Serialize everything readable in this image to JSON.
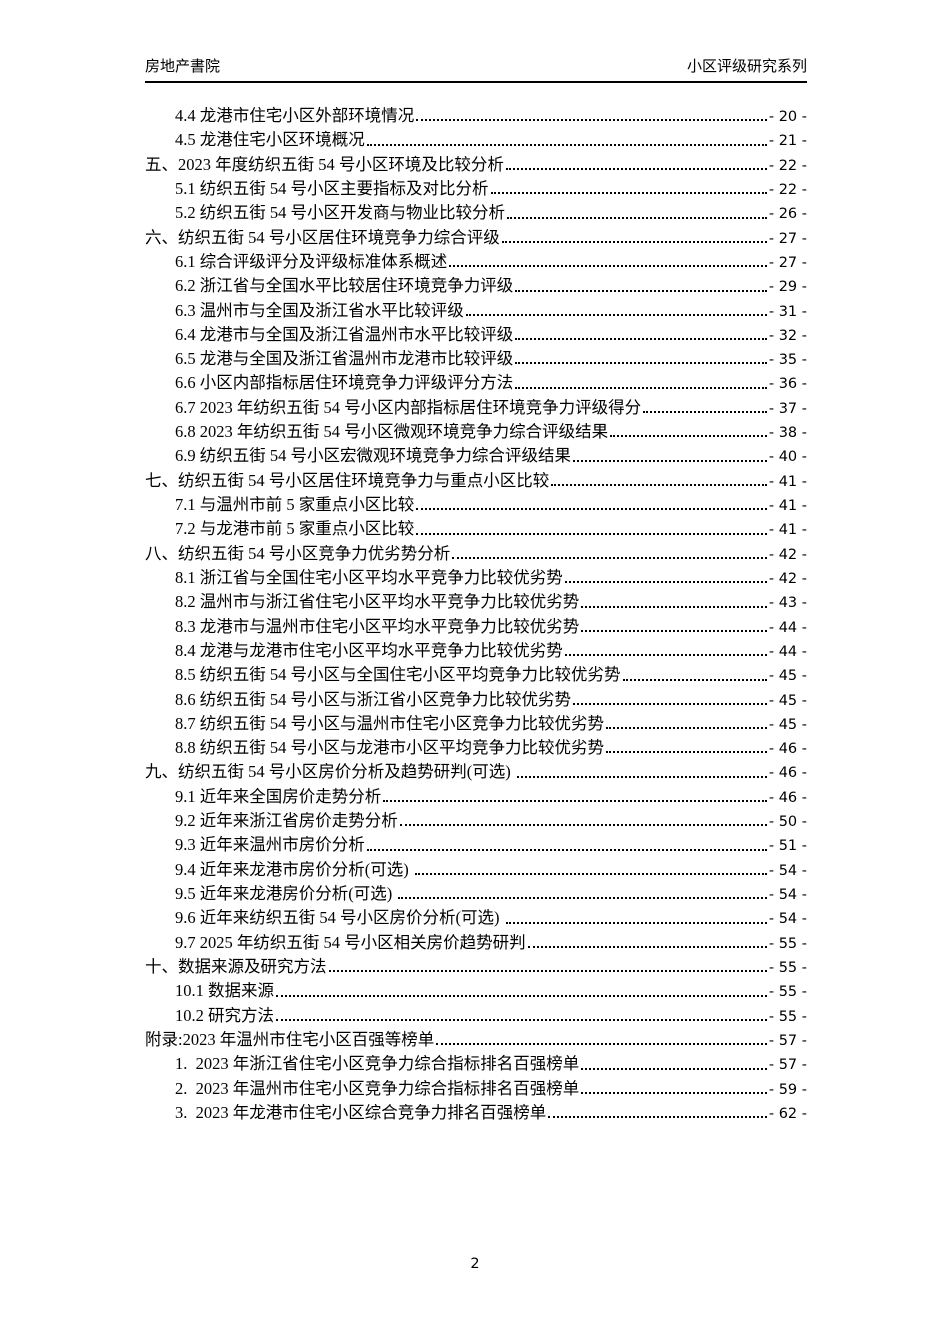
{
  "header": {
    "left": "房地产書院",
    "right": "小区评级研究系列"
  },
  "toc": {
    "entries": [
      {
        "level": 2,
        "text": "4.4 龙港市住宅小区外部环境情况",
        "page": "- 20 -"
      },
      {
        "level": 2,
        "text": "4.5 龙港住宅小区环境概况",
        "page": "- 21 -"
      },
      {
        "level": 1,
        "text": "五、2023 年度纺织五街 54 号小区环境及比较分析",
        "page": "- 22 -"
      },
      {
        "level": 2,
        "text": "5.1 纺织五街 54 号小区主要指标及对比分析",
        "page": "- 22 -"
      },
      {
        "level": 2,
        "text": "5.2 纺织五街 54 号小区开发商与物业比较分析",
        "page": "- 26 -"
      },
      {
        "level": 1,
        "text": "六、纺织五街 54 号小区居住环境竞争力综合评级",
        "page": "- 27 -"
      },
      {
        "level": 2,
        "text": "6.1 综合评级评分及评级标准体系概述",
        "page": "- 27 -"
      },
      {
        "level": 2,
        "text": "6.2 浙江省与全国水平比较居住环境竞争力评级",
        "page": "- 29 -"
      },
      {
        "level": 2,
        "text": "6.3 温州市与全国及浙江省水平比较评级",
        "page": "- 31 -"
      },
      {
        "level": 2,
        "text": "6.4 龙港市与全国及浙江省温州市水平比较评级",
        "page": "- 32 -"
      },
      {
        "level": 2,
        "text": "6.5 龙港与全国及浙江省温州市龙港市比较评级",
        "page": "- 35 -"
      },
      {
        "level": 2,
        "text": "6.6 小区内部指标居住环境竞争力评级评分方法",
        "page": "- 36 -"
      },
      {
        "level": 2,
        "text": "6.7 2023 年纺织五街 54 号小区内部指标居住环境竞争力评级得分",
        "page": "- 37 -"
      },
      {
        "level": 2,
        "text": "6.8 2023 年纺织五街 54 号小区微观环境竞争力综合评级结果",
        "page": "- 38 -"
      },
      {
        "level": 2,
        "text": "6.9 纺织五街 54 号小区宏微观环境竞争力综合评级结果",
        "page": "- 40 -"
      },
      {
        "level": 1,
        "text": "七、纺织五街 54 号小区居住环境竞争力与重点小区比较",
        "page": "- 41 -"
      },
      {
        "level": 2,
        "text": "7.1 与温州市前 5 家重点小区比较",
        "page": "- 41 -"
      },
      {
        "level": 2,
        "text": "7.2 与龙港市前 5 家重点小区比较",
        "page": "- 41 -"
      },
      {
        "level": 1,
        "text": "八、纺织五街 54 号小区竞争力优劣势分析",
        "page": "- 42 -"
      },
      {
        "level": 2,
        "text": "8.1 浙江省与全国住宅小区平均水平竞争力比较优劣势",
        "page": "- 42 -"
      },
      {
        "level": 2,
        "text": "8.2 温州市与浙江省住宅小区平均水平竞争力比较优劣势",
        "page": "- 43 -"
      },
      {
        "level": 2,
        "text": "8.3 龙港市与温州市住宅小区平均水平竞争力比较优劣势",
        "page": "- 44 -"
      },
      {
        "level": 2,
        "text": "8.4 龙港与龙港市住宅小区平均水平竞争力比较优劣势",
        "page": "- 44 -"
      },
      {
        "level": 2,
        "text": "8.5 纺织五街 54 号小区与全国住宅小区平均竞争力比较优劣势",
        "page": "- 45 -"
      },
      {
        "level": 2,
        "text": "8.6 纺织五街 54 号小区与浙江省小区竞争力比较优劣势",
        "page": "- 45 -"
      },
      {
        "level": 2,
        "text": "8.7 纺织五街 54 号小区与温州市住宅小区竞争力比较优劣势",
        "page": "- 45 -"
      },
      {
        "level": 2,
        "text": "8.8 纺织五街 54 号小区与龙港市小区平均竞争力比较优劣势",
        "page": "- 46 -"
      },
      {
        "level": 1,
        "text": "九、纺织五街 54 号小区房价分析及趋势研判(可选) ",
        "page": "- 46 -"
      },
      {
        "level": 2,
        "text": "9.1 近年来全国房价走势分析",
        "page": "- 46 -"
      },
      {
        "level": 2,
        "text": "9.2 近年来浙江省房价走势分析",
        "page": "- 50 -"
      },
      {
        "level": 2,
        "text": "9.3 近年来温州市房价分析",
        "page": "- 51 -"
      },
      {
        "level": 2,
        "text": "9.4 近年来龙港市房价分析(可选) ",
        "page": "- 54 -"
      },
      {
        "level": 2,
        "text": "9.5 近年来龙港房价分析(可选) ",
        "page": "- 54 -"
      },
      {
        "level": 2,
        "text": "9.6 近年来纺织五街 54 号小区房价分析(可选) ",
        "page": "- 54 -"
      },
      {
        "level": 2,
        "text": "9.7 2025 年纺织五街 54 号小区相关房价趋势研判",
        "page": "- 55 -"
      },
      {
        "level": 1,
        "text": "十、数据来源及研究方法",
        "page": "- 55 -"
      },
      {
        "level": 2,
        "text": "10.1 数据来源",
        "page": "- 55 -"
      },
      {
        "level": 2,
        "text": "10.2 研究方法",
        "page": "- 55 -"
      },
      {
        "level": 1,
        "text": "附录:2023 年温州市住宅小区百强等榜单",
        "page": "- 57 -"
      },
      {
        "level": 2,
        "text": "1.  2023 年浙江省住宅小区竞争力综合指标排名百强榜单",
        "page": "- 57 -"
      },
      {
        "level": 2,
        "text": "2.  2023 年温州市住宅小区竞争力综合指标排名百强榜单",
        "page": "- 59 -"
      },
      {
        "level": 2,
        "text": "3.  2023 年龙港市住宅小区综合竞争力排名百强榜单",
        "page": "- 62 -"
      }
    ]
  },
  "footer": {
    "page_number": "2"
  }
}
